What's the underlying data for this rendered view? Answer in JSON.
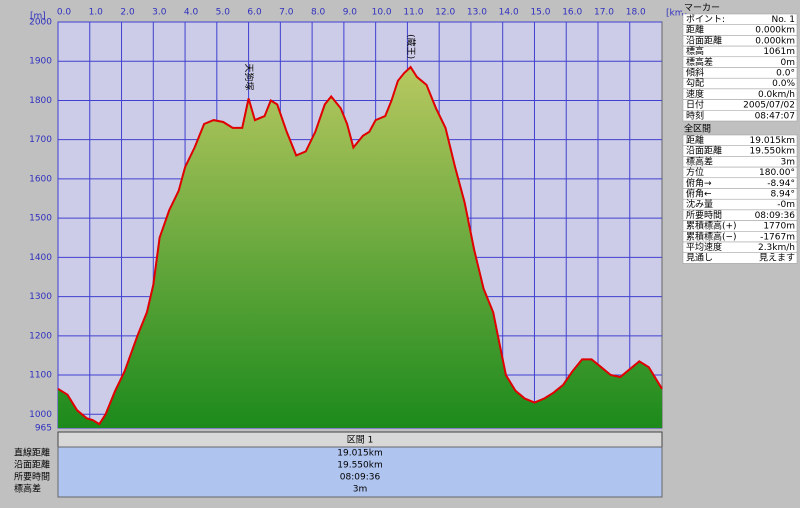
{
  "chart_data": {
    "type": "area",
    "y_unit": "[m]",
    "x_unit": "[km]",
    "xlim": [
      0,
      19.015
    ],
    "ylim": [
      965,
      2000
    ],
    "xticks": [
      {
        "value": 0,
        "label": "0.0"
      },
      {
        "value": 1,
        "label": "1.0"
      },
      {
        "value": 2,
        "label": "2.0"
      },
      {
        "value": 3,
        "label": "3.0"
      },
      {
        "value": 4,
        "label": "4.0"
      },
      {
        "value": 5,
        "label": "5.0"
      },
      {
        "value": 6,
        "label": "6.0"
      },
      {
        "value": 7,
        "label": "7.0"
      },
      {
        "value": 8,
        "label": "8.0"
      },
      {
        "value": 9,
        "label": "9.0"
      },
      {
        "value": 10,
        "label": "10.0"
      },
      {
        "value": 11,
        "label": "11.0"
      },
      {
        "value": 12,
        "label": "12.0"
      },
      {
        "value": 13,
        "label": "13.0"
      },
      {
        "value": 14,
        "label": "14.0"
      },
      {
        "value": 15,
        "label": "15.0"
      },
      {
        "value": 16,
        "label": "16.0"
      },
      {
        "value": 17,
        "label": "17.0"
      },
      {
        "value": 18,
        "label": "18.0"
      }
    ],
    "yticks": [
      965,
      1000,
      1100,
      1200,
      1300,
      1400,
      1500,
      1600,
      1700,
      1800,
      1900,
      2000
    ],
    "grid": true,
    "color": "#e00000",
    "x": [
      0,
      0.3,
      0.6,
      0.9,
      1.1,
      1.3,
      1.5,
      1.8,
      2.1,
      2.5,
      2.8,
      3.0,
      3.2,
      3.5,
      3.8,
      4.0,
      4.3,
      4.6,
      4.9,
      5.2,
      5.5,
      5.8,
      6.0,
      6.2,
      6.5,
      6.7,
      6.9,
      7.2,
      7.5,
      7.8,
      8.1,
      8.4,
      8.6,
      8.9,
      9.1,
      9.3,
      9.6,
      9.8,
      10.0,
      10.3,
      10.5,
      10.7,
      10.9,
      11.1,
      11.3,
      11.6,
      11.9,
      12.2,
      12.5,
      12.8,
      13.1,
      13.4,
      13.7,
      13.9,
      14.1,
      14.4,
      14.7,
      15.0,
      15.3,
      15.6,
      15.9,
      16.2,
      16.5,
      16.8,
      17.1,
      17.4,
      17.7,
      18.0,
      18.3,
      18.6,
      19.015
    ],
    "values": [
      1065,
      1050,
      1010,
      990,
      985,
      975,
      1000,
      1060,
      1110,
      1200,
      1260,
      1330,
      1450,
      1520,
      1570,
      1630,
      1680,
      1740,
      1750,
      1745,
      1730,
      1730,
      1805,
      1750,
      1760,
      1800,
      1790,
      1720,
      1660,
      1670,
      1720,
      1790,
      1810,
      1780,
      1740,
      1680,
      1710,
      1720,
      1750,
      1760,
      1800,
      1850,
      1870,
      1885,
      1860,
      1840,
      1780,
      1730,
      1630,
      1540,
      1420,
      1320,
      1260,
      1180,
      1100,
      1060,
      1040,
      1030,
      1040,
      1055,
      1075,
      1110,
      1140,
      1140,
      1120,
      1100,
      1095,
      1115,
      1135,
      1120,
      1065
    ],
    "annotations": [
      {
        "text": "天狗塚",
        "x": 6.0,
        "y": 1805
      },
      {
        "text": "(蔵王)",
        "x": 11.1,
        "y": 1885
      }
    ]
  },
  "marker": {
    "title": "マーカー",
    "rows": [
      [
        "ポイント:",
        "No. 1"
      ],
      [
        "距離",
        "0.000km"
      ],
      [
        "沿面距離",
        "0.000km"
      ],
      [
        "標高",
        "1061m"
      ],
      [
        "標高差",
        "0m"
      ],
      [
        "傾斜",
        "0.0°"
      ],
      [
        "勾配",
        "0.0%"
      ],
      [
        "速度",
        "0.0km/h"
      ],
      [
        "日付",
        "2005/07/02"
      ],
      [
        "時刻",
        "08:47:07"
      ]
    ]
  },
  "total": {
    "title": "全区間",
    "rows": [
      [
        "距離",
        "19.015km"
      ],
      [
        "沿面距離",
        "19.550km"
      ],
      [
        "標高差",
        "3m"
      ],
      [
        "方位",
        "180.00°"
      ],
      [
        "俯角→",
        "-8.94°"
      ],
      [
        "俯角←",
        "8.94°"
      ],
      [
        "沈み量",
        "-0m"
      ],
      [
        "所要時間",
        "08:09:36"
      ],
      [
        "累積標高(+)",
        "1770m"
      ],
      [
        "累積標高(−)",
        "-1767m"
      ],
      [
        "平均速度",
        "2.3km/h"
      ],
      [
        "見通し",
        "見えます"
      ]
    ]
  },
  "section": {
    "title": "区間 1",
    "rows": [
      [
        "直線距離",
        "19.015km"
      ],
      [
        "沿面距離",
        "19.550km"
      ],
      [
        "所要時間",
        "08:09:36"
      ],
      [
        "標高差",
        "3m"
      ]
    ]
  }
}
